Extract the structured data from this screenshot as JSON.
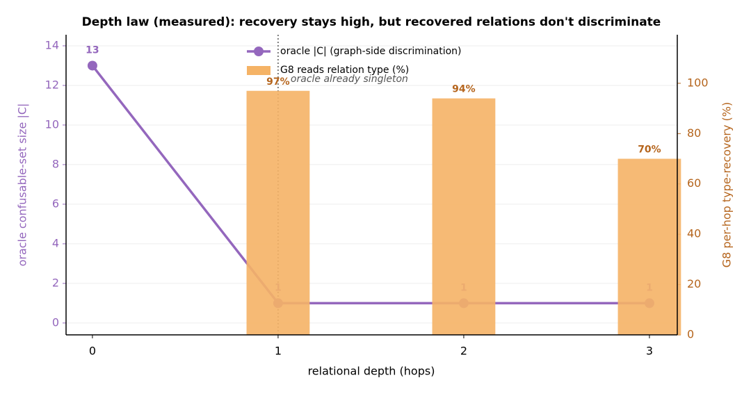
{
  "chart_data": {
    "type": "line-bar-dual-axis",
    "title": "Depth law (measured): recovery stays high, but recovered relations don't discriminate",
    "xlabel": "relational depth (hops)",
    "ylabel": "oracle confusable-set size  |C|",
    "y2label": "G8 per-hop type-recovery (%)",
    "xlim": [
      -0.142,
      3.15
    ],
    "xticks": [
      0,
      1,
      2,
      3
    ],
    "ylim": [
      -0.6,
      14.56
    ],
    "yticks": [
      0,
      2,
      4,
      6,
      8,
      10,
      12,
      14
    ],
    "y2lim": [
      0,
      119.3
    ],
    "y2ticks": [
      0,
      20,
      40,
      60,
      80,
      100
    ],
    "grid": true,
    "legend": "upper center",
    "y_color": "#9467bd",
    "y2_color": "#b5651d",
    "series": [
      {
        "name": "oracle |C| (graph-side discrimination)",
        "type": "line",
        "color": "#9467bd",
        "x": [
          0,
          1,
          2,
          3
        ],
        "values": [
          13,
          1,
          1,
          1
        ]
      },
      {
        "name": "G8 reads relation type (%)",
        "type": "bar",
        "axis": "y2",
        "color": "#f5b366",
        "x": [
          1,
          2,
          3
        ],
        "values": [
          97,
          94,
          70
        ],
        "value_labels": [
          "97%",
          "94%",
          "70%"
        ]
      }
    ],
    "annotation": {
      "text": "oracle already singleton",
      "x": 1
    }
  }
}
